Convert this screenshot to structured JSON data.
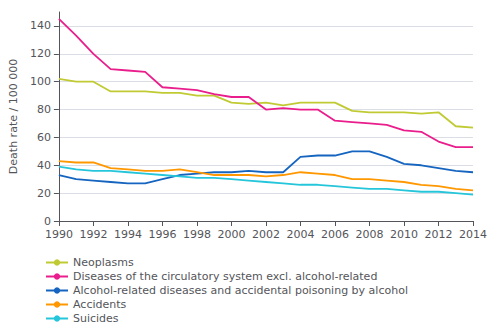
{
  "chart_data": {
    "type": "line",
    "x": [
      1990,
      1991,
      1992,
      1993,
      1994,
      1995,
      1996,
      1997,
      1998,
      1999,
      2000,
      2001,
      2002,
      2003,
      2004,
      2005,
      2006,
      2007,
      2008,
      2009,
      2010,
      2011,
      2012,
      2013,
      2014
    ],
    "series": [
      {
        "name": "Neoplasms",
        "color": "#c0ca33",
        "values": [
          102,
          100,
          100,
          93,
          93,
          93,
          92,
          92,
          90,
          90,
          85,
          84,
          85,
          83,
          85,
          85,
          85,
          79,
          78,
          78,
          78,
          77,
          78,
          68,
          67
        ]
      },
      {
        "name": "Diseases of the circulatory system excl. alcohol-related",
        "color": "#e91e8c",
        "values": [
          145,
          133,
          120,
          109,
          108,
          107,
          96,
          95,
          94,
          91,
          89,
          89,
          80,
          81,
          80,
          80,
          72,
          71,
          70,
          69,
          65,
          64,
          57,
          53,
          53
        ]
      },
      {
        "name": "Alcohol-related diseases and accidental poisoning by alcohol",
        "color": "#1565c0",
        "values": [
          33,
          30,
          29,
          28,
          27,
          27,
          30,
          33,
          34,
          35,
          35,
          36,
          35,
          35,
          46,
          47,
          47,
          50,
          50,
          46,
          41,
          40,
          38,
          36,
          35
        ]
      },
      {
        "name": "Accidents",
        "color": "#ff9800",
        "values": [
          43,
          42,
          42,
          38,
          37,
          36,
          36,
          37,
          35,
          33,
          33,
          33,
          32,
          33,
          35,
          34,
          33,
          30,
          30,
          29,
          28,
          26,
          25,
          23,
          22
        ]
      },
      {
        "name": "Suicides",
        "color": "#26c6da",
        "values": [
          39,
          37,
          36,
          36,
          35,
          34,
          33,
          32,
          31,
          31,
          30,
          29,
          28,
          27,
          26,
          26,
          25,
          24,
          23,
          23,
          22,
          21,
          21,
          20,
          19
        ]
      }
    ],
    "ylabel": "Death rate / 100 000",
    "xlim": [
      1990,
      2014
    ],
    "xticks": [
      1990,
      1992,
      1994,
      1996,
      1998,
      2000,
      2002,
      2004,
      2006,
      2008,
      2010,
      2012,
      2014
    ],
    "ylim": [
      0,
      150
    ],
    "yticks": [
      0,
      20,
      40,
      60,
      80,
      100,
      120,
      140
    ],
    "grid": true,
    "legend": "lower left"
  }
}
